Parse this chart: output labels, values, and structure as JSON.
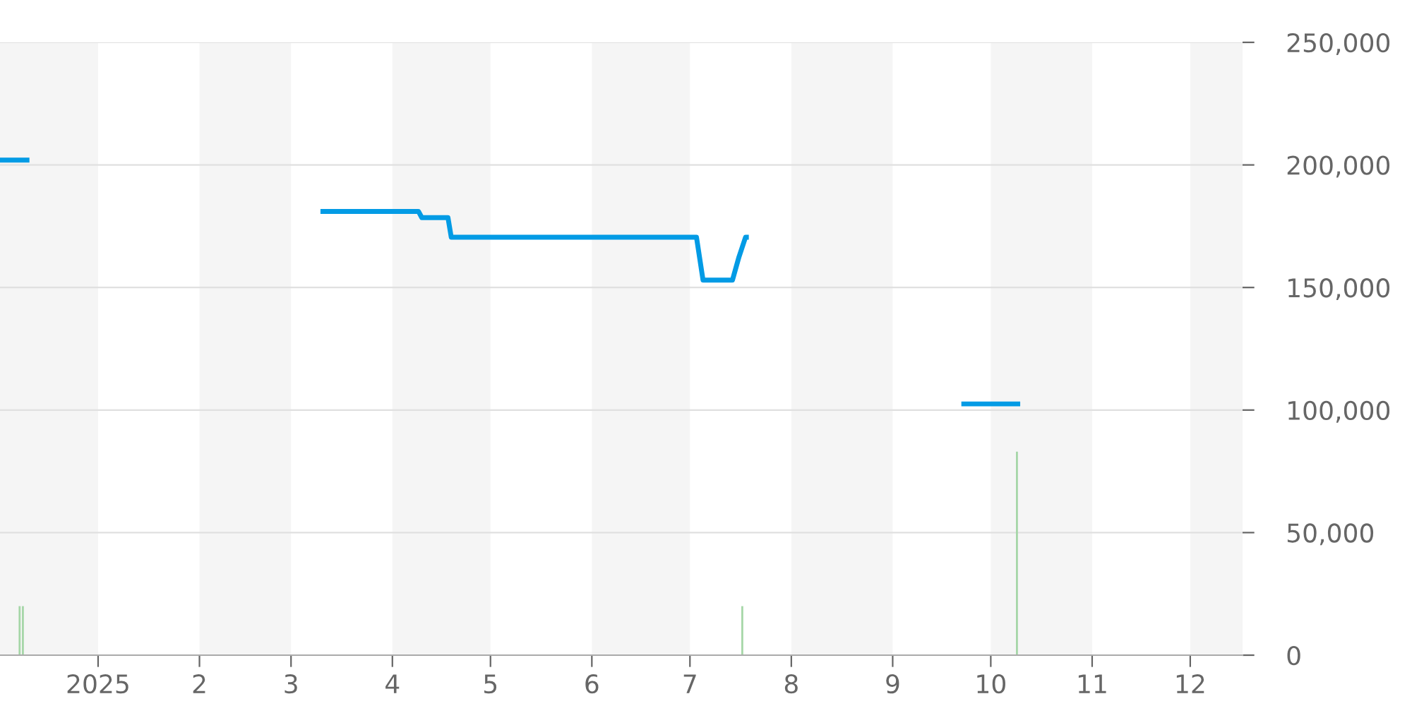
{
  "chart_data": {
    "type": "line",
    "series": [
      {
        "color": "#039be5",
        "x": [
          "2024-12-02",
          "2024-12-11",
          "2024-12-12",
          "2025-03-10",
          "2025-04-09",
          "2025-04-10",
          "2025-04-18",
          "2025-04-19",
          "2025-07-03",
          "2025-07-05",
          "2025-07-14",
          "2025-07-16",
          "2025-07-18",
          "2025-07-19",
          "2025-07-20",
          "2025-09-22",
          "2025-10-10"
        ],
        "values": [
          202000,
          202000,
          null,
          181000,
          181000,
          178500,
          178500,
          170500,
          170500,
          153000,
          153000,
          162500,
          170500,
          170500,
          null,
          102500,
          102500
        ]
      },
      {
        "type": "bar",
        "color": "#a5d6a7",
        "x": [
          "2024-12-08",
          "2024-12-09",
          "2025-07-17",
          "2025-10-09"
        ],
        "values": [
          20000,
          20000,
          20000,
          83000
        ]
      }
    ],
    "xlim": [
      "2024-12-02",
      "2025-12-17"
    ],
    "xticks": [
      {
        "value": "2025-01-01",
        "label": "2025"
      },
      {
        "value": "2025-02-01",
        "label": "2"
      },
      {
        "value": "2025-03-01",
        "label": "3"
      },
      {
        "value": "2025-04-01",
        "label": "4"
      },
      {
        "value": "2025-05-01",
        "label": "5"
      },
      {
        "value": "2025-06-01",
        "label": "6"
      },
      {
        "value": "2025-07-01",
        "label": "7"
      },
      {
        "value": "2025-08-01",
        "label": "8"
      },
      {
        "value": "2025-09-01",
        "label": "9"
      },
      {
        "value": "2025-10-01",
        "label": "10"
      },
      {
        "value": "2025-11-01",
        "label": "11"
      },
      {
        "value": "2025-12-01",
        "label": "12"
      }
    ],
    "ylim": [
      0,
      250000
    ],
    "yticks": [
      {
        "value": 0,
        "label": "0"
      },
      {
        "value": 50000,
        "label": "50,000"
      },
      {
        "value": 100000,
        "label": "100,000"
      },
      {
        "value": 150000,
        "label": "150,000"
      },
      {
        "value": 200000,
        "label": "200,000"
      },
      {
        "value": 250000,
        "label": "250,000"
      }
    ],
    "bands": [
      {
        "axis": "x",
        "from": "2024-12-02",
        "to": "2025-01-01",
        "color": "#f5f5f5"
      },
      {
        "axis": "x",
        "from": "2025-02-01",
        "to": "2025-03-01",
        "color": "#f5f5f5"
      },
      {
        "axis": "x",
        "from": "2025-04-01",
        "to": "2025-05-01",
        "color": "#f5f5f5"
      },
      {
        "axis": "x",
        "from": "2025-06-01",
        "to": "2025-07-01",
        "color": "#f5f5f5"
      },
      {
        "axis": "x",
        "from": "2025-08-01",
        "to": "2025-09-01",
        "color": "#f5f5f5"
      },
      {
        "axis": "x",
        "from": "2025-10-01",
        "to": "2025-11-01",
        "color": "#f5f5f5"
      },
      {
        "axis": "x",
        "from": "2025-12-01",
        "to": "2025-12-17",
        "color": "#f5f5f5"
      }
    ],
    "grid": "y",
    "legend": false
  }
}
